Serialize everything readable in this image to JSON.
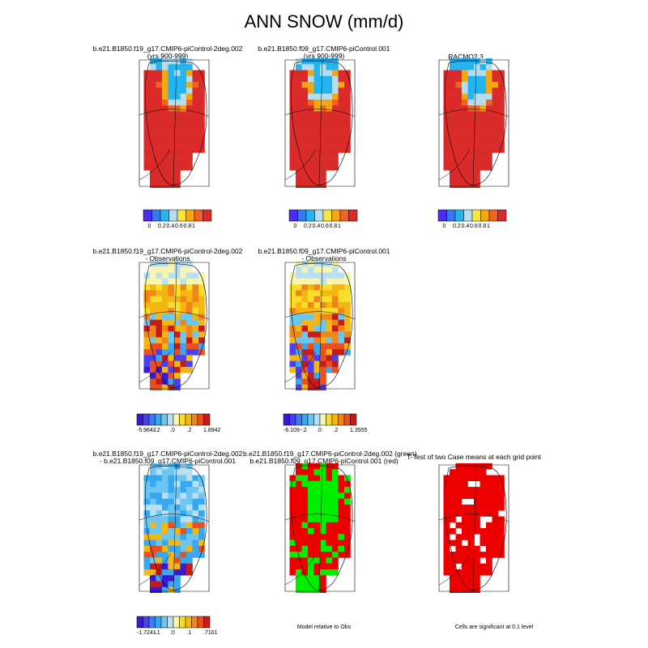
{
  "title": "ANN SNOW (mm/d)",
  "colors": {
    "palette": [
      "#4a2cf0",
      "#3a78f0",
      "#26b4f0",
      "#b6dcef",
      "#f7e640",
      "#f3a712",
      "#f0641e",
      "#da2a2a"
    ],
    "diff_palette": [
      "#3a18d8",
      "#4b3ff2",
      "#3f7af0",
      "#37a8f0",
      "#6cc6f2",
      "#b9dff2",
      "#f8f5b0",
      "#f8de2a",
      "#f5b512",
      "#f0861a",
      "#ea4f1f",
      "#c51b1b"
    ],
    "green": "#00ee00",
    "red": "#ee0000",
    "outline": "#000000"
  },
  "row1": [
    {
      "title1": "b.e21.B1850.f19_g17.CMIP6-piControl-2deg.002",
      "title2": "(yrs 900-999)"
    },
    {
      "title1": "b.e21.B1850.f09_g17.CMIP6-piControl.001",
      "title2": "(yrs 900-999)"
    },
    {
      "title1": "RACMO2.3",
      "title2": ""
    }
  ],
  "row1_labels": [
    "0",
    "0.2",
    "0.4",
    "0.6",
    "0.8",
    "1"
  ],
  "row2": [
    {
      "title1": "b.e21.B1850.f19_g17.CMIP6-piControl-2deg.002",
      "title2": "- Observations",
      "labels": [
        "-5.9642",
        "-.2",
        ".0",
        ".2",
        "1.8942"
      ]
    },
    {
      "title1": "b.e21.B1850.f09_g17.CMIP6-piControl.001",
      "title2": "- Observations",
      "labels": [
        "-6.109",
        "-.2",
        ".0",
        ".2",
        "1.3555"
      ]
    }
  ],
  "row3": [
    {
      "title1": "b.e21.B1850.f19_g17.CMIP6-piControl-2deg.002",
      "title2": "- b.e21.B1850.f09_g17.CMIP6-piControl.001",
      "labels": [
        "-1.7241",
        "-.1",
        ".0",
        ".1",
        ".7161"
      ]
    },
    {
      "title1": "b.e21.B1850.f19_g17.CMIP6-piControl-2deg.002 (green)",
      "title2": "b.e21.B1850.f09_g17.CMIP6-piControl.001 (red)",
      "note": "Model relative to Obs"
    },
    {
      "title1": "T-Test of two Case means at each grid point",
      "title2": "",
      "note": "Cells are significant at 0.1 level"
    }
  ]
}
